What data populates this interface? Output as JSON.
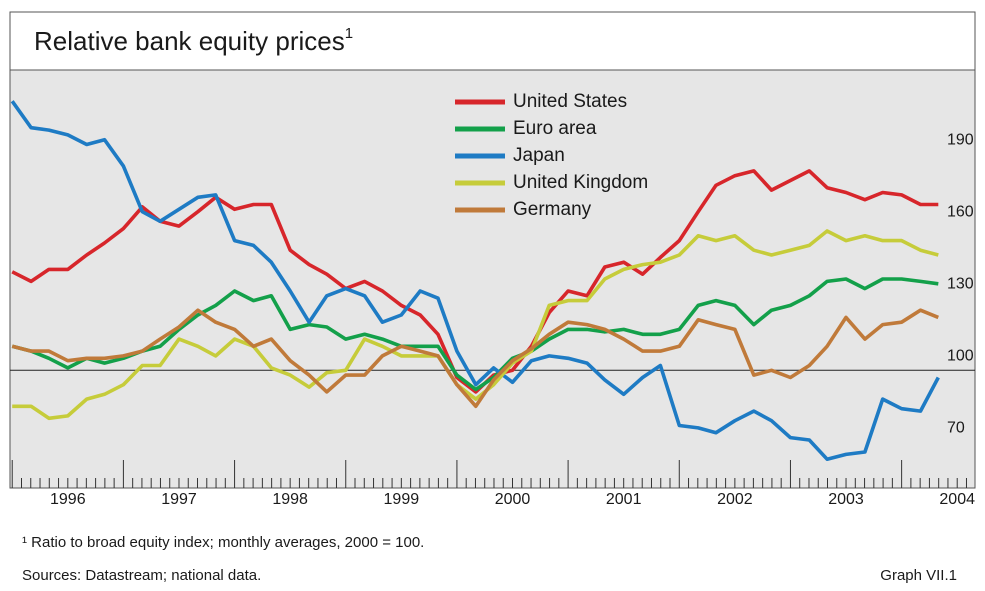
{
  "chart_data": {
    "type": "line",
    "title": "Relative bank equity prices",
    "title_note": "1",
    "footnote": "¹ Ratio to broad equity index; monthly averages, 2000 = 100.",
    "source": "Sources: Datastream; national data.",
    "graph_id": "Graph VII.1",
    "x": [
      1996,
      1996.17,
      1996.33,
      1996.5,
      1996.67,
      1996.83,
      1997,
      1997.17,
      1997.33,
      1997.5,
      1997.67,
      1997.83,
      1998,
      1998.17,
      1998.33,
      1998.5,
      1998.67,
      1998.83,
      1999,
      1999.17,
      1999.33,
      1999.5,
      1999.67,
      1999.83,
      2000,
      2000.17,
      2000.33,
      2000.5,
      2000.67,
      2000.83,
      2001,
      2001.17,
      2001.33,
      2001.5,
      2001.67,
      2001.83,
      2002,
      2002.17,
      2002.33,
      2002.5,
      2002.67,
      2002.83,
      2003,
      2003.17,
      2003.33,
      2003.5,
      2003.67,
      2003.83,
      2004,
      2004.17,
      2004.33
    ],
    "series": [
      {
        "name": "United States",
        "color": "#d7262b",
        "values": [
          141,
          137,
          142,
          142,
          148,
          153,
          159,
          168,
          162,
          160,
          166,
          172,
          167,
          169,
          169,
          150,
          144,
          140,
          134,
          137,
          133,
          127,
          123,
          115,
          97,
          91,
          98,
          100,
          110,
          124,
          133,
          131,
          143,
          145,
          140,
          147,
          154,
          166,
          177,
          181,
          183,
          175,
          179,
          183,
          176,
          174,
          171,
          174,
          173,
          169,
          169
        ]
      },
      {
        "name": "Euro area",
        "color": "#13a04a",
        "values": [
          110,
          108,
          105,
          101,
          105,
          103,
          105,
          108,
          110,
          117,
          123,
          127,
          133,
          129,
          131,
          117,
          119,
          118,
          113,
          115,
          113,
          110,
          110,
          110,
          98,
          92,
          97,
          105,
          108,
          113,
          117,
          117,
          116,
          117,
          115,
          115,
          117,
          127,
          129,
          127,
          119,
          125,
          127,
          131,
          137,
          138,
          134,
          138,
          138,
          137,
          136
        ]
      },
      {
        "name": "Japan",
        "color": "#1e7bc4",
        "values": [
          212,
          201,
          200,
          198,
          194,
          196,
          185,
          166,
          162,
          167,
          172,
          173,
          154,
          152,
          145,
          133,
          120,
          131,
          134,
          131,
          120,
          123,
          133,
          130,
          108,
          94,
          101,
          95,
          104,
          106,
          105,
          103,
          96,
          90,
          97,
          102,
          77,
          76,
          74,
          79,
          83,
          79,
          72,
          71,
          63,
          65,
          66,
          88,
          84,
          83,
          97
        ]
      },
      {
        "name": "United Kingdom",
        "color": "#c6cc3a",
        "values": [
          85,
          85,
          80,
          81,
          88,
          90,
          94,
          102,
          102,
          113,
          110,
          106,
          113,
          110,
          101,
          98,
          93,
          99,
          100,
          113,
          110,
          106,
          106,
          106,
          94,
          88,
          94,
          103,
          108,
          127,
          129,
          129,
          138,
          142,
          144,
          145,
          148,
          156,
          154,
          156,
          150,
          148,
          150,
          152,
          158,
          154,
          156,
          154,
          154,
          150,
          148
        ]
      },
      {
        "name": "Germany",
        "color": "#c07a3a",
        "values": [
          110,
          108,
          108,
          104,
          105,
          105,
          106,
          108,
          113,
          118,
          125,
          120,
          117,
          110,
          113,
          104,
          98,
          91,
          98,
          98,
          106,
          110,
          108,
          106,
          94,
          85,
          96,
          104,
          109,
          115,
          120,
          119,
          117,
          113,
          108,
          108,
          110,
          121,
          119,
          117,
          98,
          100,
          97,
          102,
          110,
          122,
          113,
          119,
          120,
          125,
          122
        ]
      }
    ],
    "xlim": [
      1995.98,
      2004.66
    ],
    "xticks": [
      {
        "value": 1996.5,
        "label": "1996"
      },
      {
        "value": 1997.5,
        "label": "1997"
      },
      {
        "value": 1998.5,
        "label": "1998"
      },
      {
        "value": 1999.5,
        "label": "1999"
      },
      {
        "value": 2000.5,
        "label": "2000"
      },
      {
        "value": 2001.5,
        "label": "2001"
      },
      {
        "value": 2002.5,
        "label": "2002"
      },
      {
        "value": 2003.5,
        "label": "2003"
      },
      {
        "value": 2004.5,
        "label": "2004"
      }
    ],
    "ylim": [
      51,
      225
    ],
    "yticks": [
      70,
      100,
      130,
      160,
      190
    ],
    "reference_line": 100,
    "grid": false,
    "legend": "top"
  }
}
